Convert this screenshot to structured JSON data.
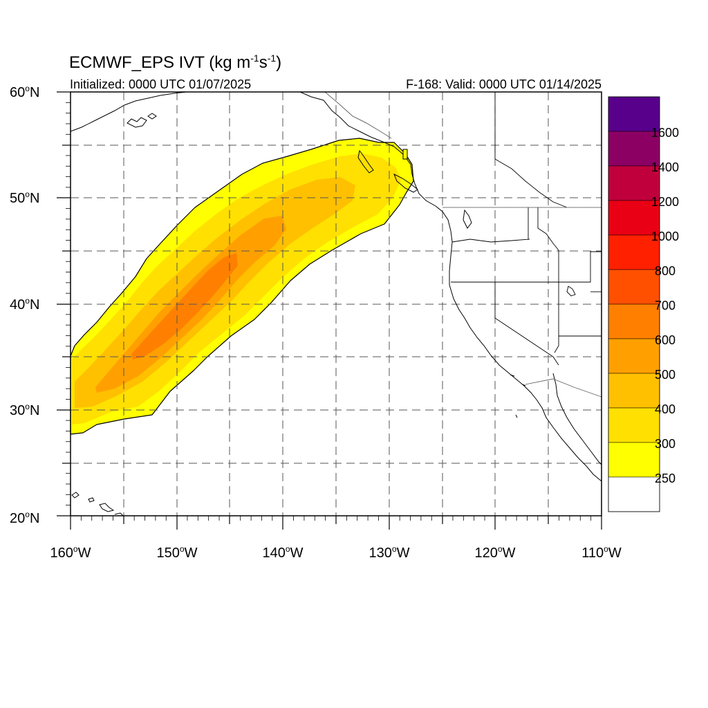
{
  "title": {
    "main": "ECMWF_EPS IVT (kg m",
    "unit_sup1": "-1",
    "unit_mid": "s",
    "unit_sup2": "-1",
    "unit_close": ")"
  },
  "subtitle_left": "Initialized: 0000 UTC 01/07/2025",
  "subtitle_right": "F-168: Valid: 0000 UTC 01/14/2025",
  "lat_labels": [
    {
      "deg": "60",
      "sup": "o",
      "hemi": "N"
    },
    {
      "deg": "50",
      "sup": "o",
      "hemi": "N"
    },
    {
      "deg": "40",
      "sup": "o",
      "hemi": "N"
    },
    {
      "deg": "30",
      "sup": "o",
      "hemi": "N"
    },
    {
      "deg": "20",
      "sup": "o",
      "hemi": "N"
    }
  ],
  "lon_labels": [
    {
      "deg": "160",
      "sup": "o",
      "hemi": "W"
    },
    {
      "deg": "150",
      "sup": "o",
      "hemi": "W"
    },
    {
      "deg": "140",
      "sup": "o",
      "hemi": "W"
    },
    {
      "deg": "130",
      "sup": "o",
      "hemi": "W"
    },
    {
      "deg": "120",
      "sup": "o",
      "hemi": "W"
    },
    {
      "deg": "110",
      "sup": "o",
      "hemi": "W"
    }
  ],
  "colorbar": {
    "labels": [
      "1600",
      "1400",
      "1200",
      "1000",
      "800",
      "700",
      "600",
      "500",
      "400",
      "300",
      "250"
    ],
    "colors": [
      "#58008c",
      "#8c0064",
      "#c0003c",
      "#ea0014",
      "#ff2000",
      "#ff5000",
      "#ff8000",
      "#ffa000",
      "#ffc000",
      "#ffe000",
      "#ffff00",
      "#ffffff"
    ]
  }
}
